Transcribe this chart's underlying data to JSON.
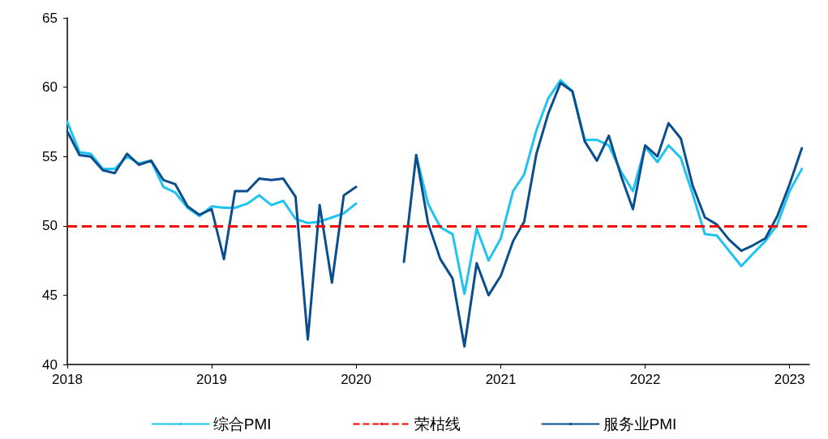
{
  "chart_data": {
    "type": "line",
    "x": [
      "2018-01",
      "2018-02",
      "2018-03",
      "2018-04",
      "2018-05",
      "2018-06",
      "2018-07",
      "2018-08",
      "2018-09",
      "2018-10",
      "2018-11",
      "2018-12",
      "2019-01",
      "2019-02",
      "2019-03",
      "2019-04",
      "2019-05",
      "2019-06",
      "2019-07",
      "2019-08",
      "2019-09",
      "2019-10",
      "2019-11",
      "2019-12",
      "2020-01",
      "2020-02",
      "2020-03",
      "2020-04",
      "2020-05",
      "2020-06",
      "2020-07",
      "2020-08",
      "2020-09",
      "2020-10",
      "2020-11",
      "2020-12",
      "2021-01",
      "2021-02",
      "2021-03",
      "2021-04",
      "2021-05",
      "2021-06",
      "2021-07",
      "2021-08",
      "2021-09",
      "2021-10",
      "2021-11",
      "2021-12",
      "2022-01",
      "2022-02",
      "2022-03",
      "2022-04",
      "2022-05",
      "2022-06",
      "2022-07",
      "2022-08",
      "2022-09",
      "2022-10",
      "2022-11",
      "2022-12",
      "2023-01",
      "2023-02"
    ],
    "series": [
      {
        "name": "综合PMI",
        "color": "#1fc3f0",
        "values": [
          57.5,
          55.3,
          55.2,
          54.1,
          54.1,
          55.0,
          54.5,
          54.7,
          52.8,
          52.4,
          51.3,
          50.7,
          51.4,
          51.3,
          51.3,
          51.6,
          52.2,
          51.5,
          51.8,
          50.5,
          50.2,
          50.3,
          50.6,
          50.9,
          51.6,
          null,
          null,
          null,
          null,
          55.1,
          51.6,
          49.9,
          49.4,
          45.1,
          49.8,
          47.5,
          49.1,
          52.5,
          53.7,
          56.9,
          59.2,
          60.5,
          59.7,
          56.2,
          56.2,
          55.8,
          53.9,
          52.5,
          55.7,
          54.6,
          55.8,
          54.9,
          52.3,
          49.4,
          49.3,
          48.2,
          47.1,
          48.0,
          48.9,
          50.1,
          52.5,
          54.1
        ]
      },
      {
        "name": "服务业PMI",
        "color": "#0b4e8e",
        "values": [
          56.8,
          55.1,
          55.0,
          54.0,
          53.8,
          55.2,
          54.4,
          54.7,
          53.3,
          53.0,
          51.4,
          50.8,
          51.2,
          47.6,
          52.5,
          52.5,
          53.4,
          53.3,
          53.4,
          52.1,
          41.8,
          51.5,
          45.9,
          52.2,
          52.8,
          null,
          null,
          null,
          47.4,
          55.1,
          50.2,
          47.6,
          46.2,
          41.3,
          47.3,
          45.0,
          46.4,
          48.9,
          50.3,
          55.2,
          58.1,
          60.3,
          59.7,
          56.1,
          54.7,
          56.5,
          53.6,
          51.2,
          55.8,
          55.0,
          57.4,
          56.3,
          52.9,
          50.6,
          50.1,
          49.0,
          48.2,
          48.6,
          49.1,
          50.7,
          53.0,
          55.6
        ]
      }
    ],
    "ref_lines": [
      {
        "axis": "y",
        "value": 50,
        "label": "荣枯线",
        "color": "#ff0000",
        "line_style": "dashed"
      }
    ],
    "xlim": [
      "2018-01",
      "2023-02-20"
    ],
    "xticks": [
      "2018",
      "2019",
      "2020",
      "2021",
      "2022",
      "2023"
    ],
    "ylim": [
      40,
      65
    ],
    "yticks": [
      40,
      45,
      50,
      55,
      60,
      65
    ],
    "grid": false,
    "legend": "bottom",
    "marker": "none",
    "line_style": "solid"
  }
}
